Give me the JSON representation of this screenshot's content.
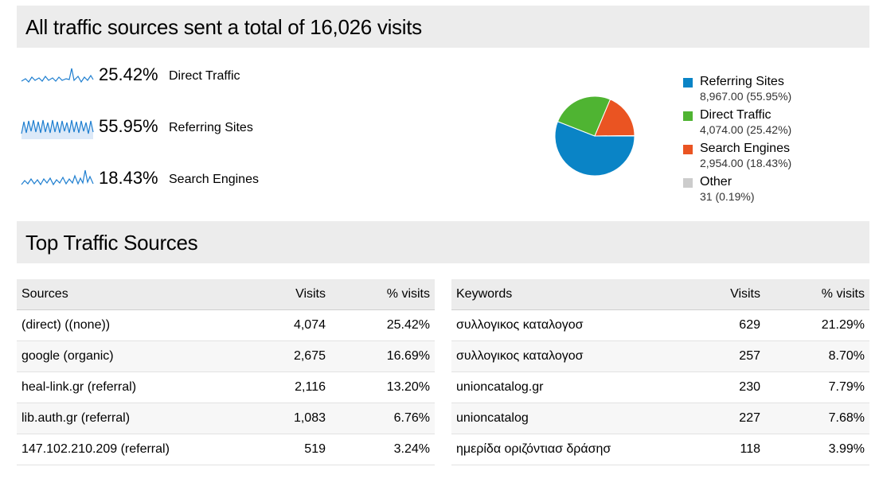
{
  "summary": {
    "title": "All traffic sources sent a total of 16,026 visits"
  },
  "metrics": [
    {
      "percent": "25.42%",
      "label": "Direct Traffic"
    },
    {
      "percent": "55.95%",
      "label": "Referring Sites"
    },
    {
      "percent": "18.43%",
      "label": "Search Engines"
    }
  ],
  "legend": [
    {
      "name": "Referring Sites",
      "value": "8,967.00 (55.95%)",
      "color": "#0a84c6"
    },
    {
      "name": "Direct Traffic",
      "value": "4,074.00 (25.42%)",
      "color": "#4fb432"
    },
    {
      "name": "Search Engines",
      "value": "2,954.00 (18.43%)",
      "color": "#ea5422"
    },
    {
      "name": "Other",
      "value": "31 (0.19%)",
      "color": "#cccccc"
    }
  ],
  "chart_data": {
    "type": "pie",
    "categories": [
      "Referring Sites",
      "Direct Traffic",
      "Search Engines",
      "Other"
    ],
    "values": [
      8967,
      4074,
      2954,
      31
    ],
    "colors": [
      "#0a84c6",
      "#4fb432",
      "#ea5422",
      "#cccccc"
    ]
  },
  "top": {
    "title": "Top Traffic Sources"
  },
  "sources_table": {
    "headers": [
      "Sources",
      "Visits",
      "% visits"
    ],
    "rows": [
      [
        "(direct) ((none))",
        "4,074",
        "25.42%"
      ],
      [
        "google (organic)",
        "2,675",
        "16.69%"
      ],
      [
        "heal-link.gr (referral)",
        "2,116",
        "13.20%"
      ],
      [
        "lib.auth.gr (referral)",
        "1,083",
        "6.76%"
      ],
      [
        "147.102.210.209 (referral)",
        "519",
        "3.24%"
      ]
    ]
  },
  "keywords_table": {
    "headers": [
      "Keywords",
      "Visits",
      "% visits"
    ],
    "rows": [
      [
        "συλλογικος καταλογοσ",
        "629",
        "21.29%"
      ],
      [
        "συλλογικος καταλογοσ",
        "257",
        "8.70%"
      ],
      [
        "unioncatalog.gr",
        "230",
        "7.79%"
      ],
      [
        "unioncatalog",
        "227",
        "7.68%"
      ],
      [
        "ημερίδα οριζόντιασ δράσησ",
        "118",
        "3.99%"
      ]
    ]
  }
}
